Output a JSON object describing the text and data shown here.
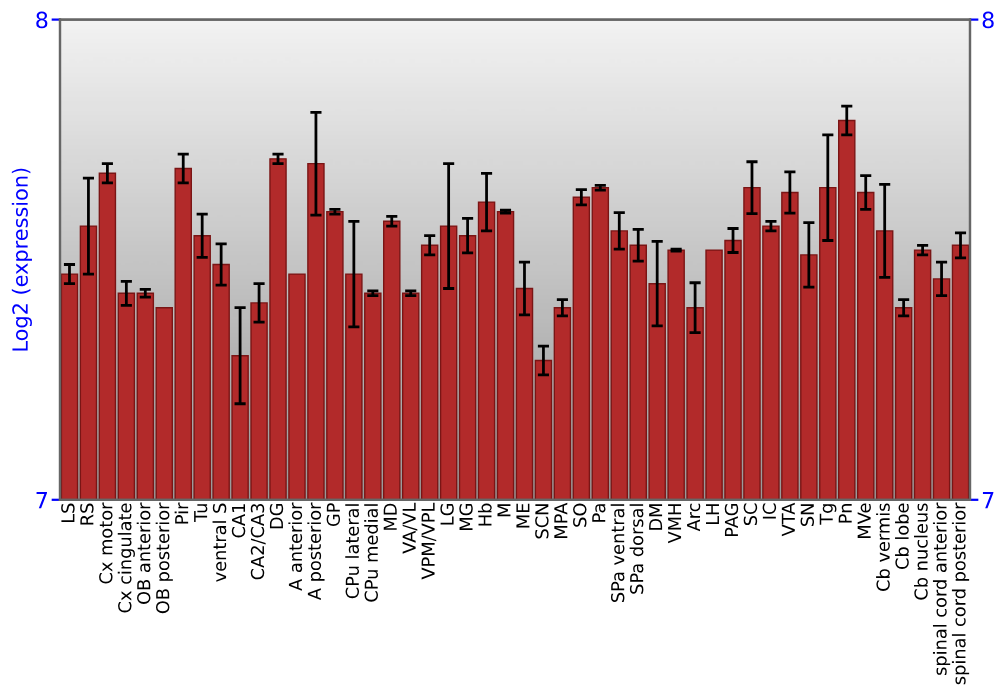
{
  "chart_data": {
    "type": "bar",
    "ylabel": "Log2 (expression)",
    "categories": [
      "LS",
      "RS",
      "Cx motor",
      "Cx cingulate",
      "OB anterior",
      "OB posterior",
      "Pir",
      "Tu",
      "ventral S",
      "CA1",
      "CA2/CA3",
      "DG",
      "A anterior",
      "A posterior",
      "GP",
      "CPu lateral",
      "CPu medial",
      "MD",
      "VA/VL",
      "VPM/VPL",
      "LG",
      "MG",
      "Hb",
      "M",
      "ME",
      "SCN",
      "MPA",
      "SO",
      "Pa",
      "SPa ventral",
      "SPa dorsal",
      "DM",
      "VMH",
      "Arc",
      "LH",
      "PAG",
      "SC",
      "IC",
      "VTA",
      "SN",
      "Tg",
      "Pn",
      "MVe",
      "Cb vermis",
      "Cb lobe",
      "Cb nucleus",
      "spinal cord anterior",
      "spinal cord posterior"
    ],
    "values": [
      7.47,
      7.57,
      7.68,
      7.43,
      7.43,
      7.4,
      7.69,
      7.55,
      7.49,
      7.3,
      7.41,
      7.71,
      7.47,
      7.7,
      7.6,
      7.47,
      7.43,
      7.58,
      7.43,
      7.53,
      7.57,
      7.55,
      7.62,
      7.6,
      7.44,
      7.29,
      7.4,
      7.63,
      7.65,
      7.56,
      7.53,
      7.45,
      7.52,
      7.4,
      7.52,
      7.54,
      7.65,
      7.57,
      7.64,
      7.51,
      7.65,
      7.79,
      7.64,
      7.56,
      7.4,
      7.52,
      7.46,
      7.53
    ],
    "errors": [
      0.02,
      0.1,
      0.02,
      0.025,
      0.008,
      null,
      0.03,
      0.045,
      0.043,
      0.1,
      0.04,
      0.01,
      null,
      0.107,
      0.005,
      0.11,
      0.005,
      0.01,
      0.005,
      0.02,
      0.13,
      0.036,
      0.06,
      0.003,
      0.055,
      0.03,
      0.017,
      0.016,
      0.005,
      0.038,
      0.033,
      0.088,
      0.002,
      0.052,
      null,
      0.025,
      0.054,
      0.01,
      0.043,
      0.067,
      0.11,
      0.03,
      0.035,
      0.097,
      0.017,
      0.01,
      0.035,
      0.026
    ],
    "color": "#b22a2a",
    "ylim": [
      7,
      8
    ],
    "yticks": [
      7,
      8
    ],
    "y2lim": [
      7,
      8
    ],
    "y2ticks": [
      7,
      8
    ],
    "grid": false,
    "legend": false
  }
}
